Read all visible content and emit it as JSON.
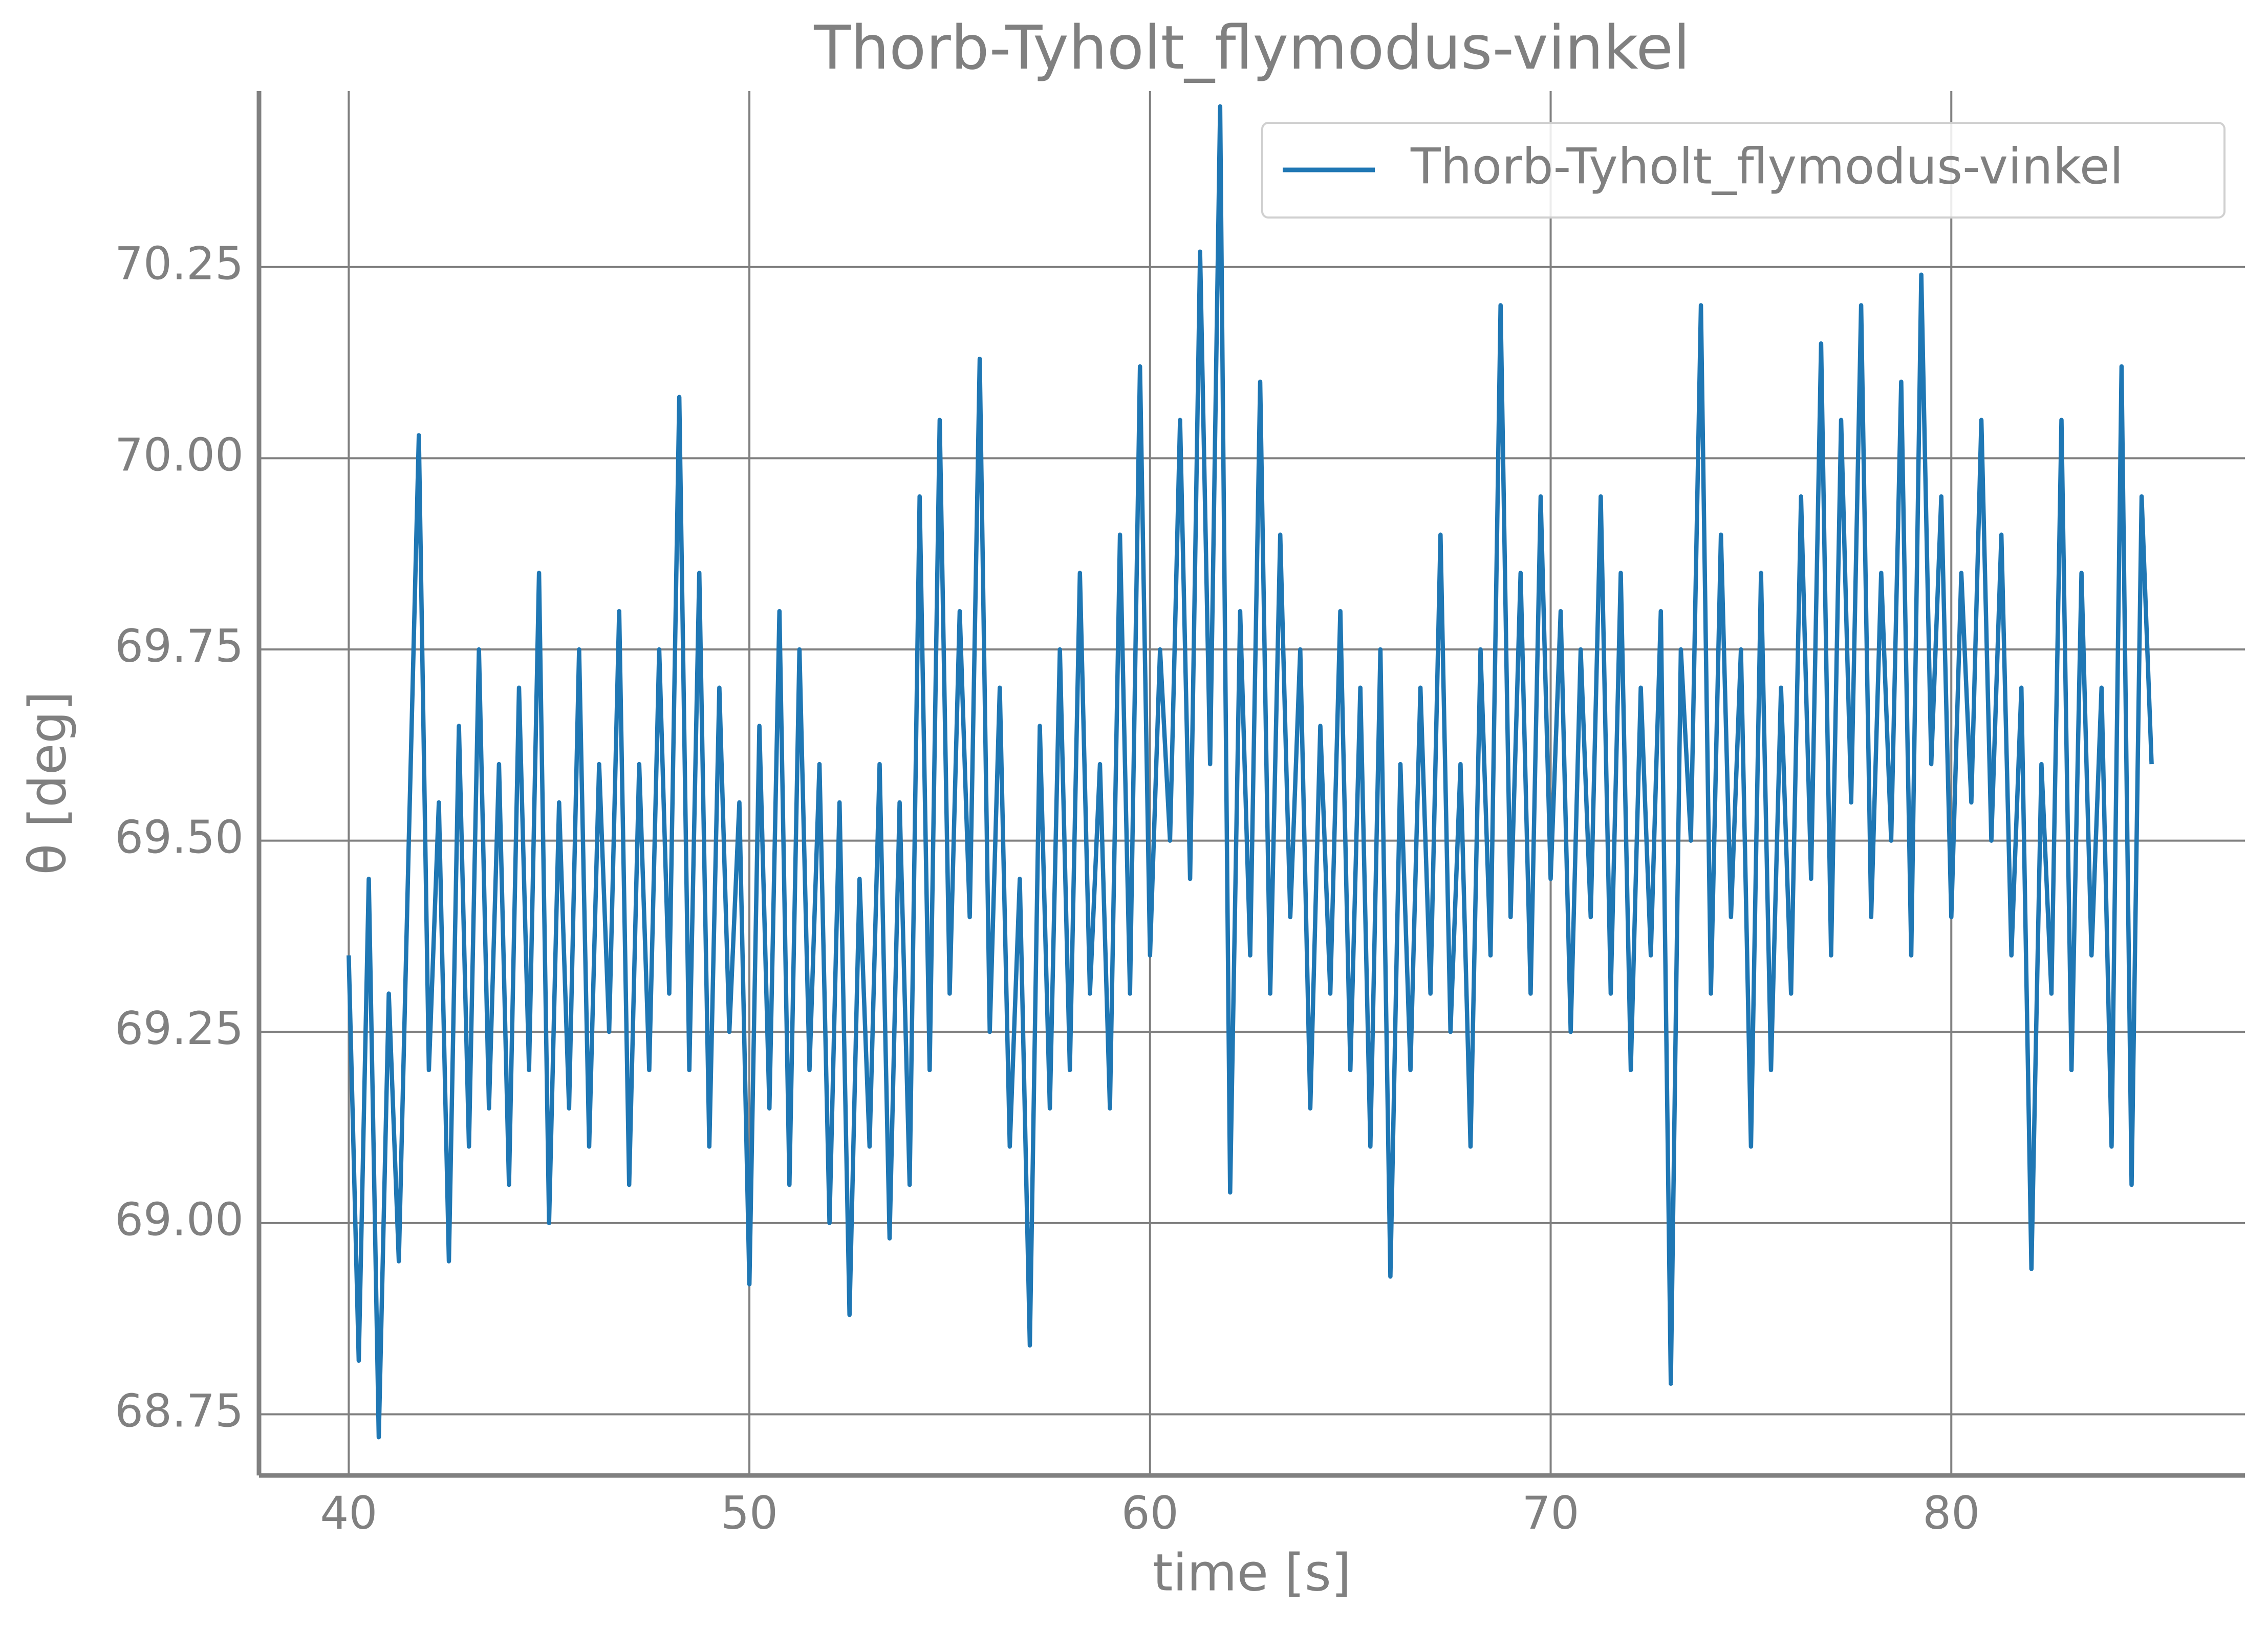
{
  "chart_data": {
    "type": "line",
    "title": "Thorb-Tyholt_flymodus-vinkel",
    "xlabel": "time [s]",
    "ylabel": "θ [deg]",
    "x": [
      40,
      40.25,
      40.5,
      40.75,
      41,
      41.25,
      41.5,
      41.75,
      42,
      42.25,
      42.5,
      42.75,
      43,
      43.25,
      43.5,
      43.75,
      44,
      44.25,
      44.5,
      44.75,
      45,
      45.25,
      45.5,
      45.75,
      46,
      46.25,
      46.5,
      46.75,
      47,
      47.25,
      47.5,
      47.75,
      48,
      48.25,
      48.5,
      48.75,
      49,
      49.25,
      49.5,
      49.75,
      50,
      50.25,
      50.5,
      50.75,
      51,
      51.25,
      51.5,
      51.75,
      52,
      52.25,
      52.5,
      52.75,
      53,
      53.25,
      53.5,
      53.75,
      54,
      54.25,
      54.5,
      54.75,
      55,
      55.25,
      55.5,
      55.75,
      56,
      56.25,
      56.5,
      56.75,
      57,
      57.25,
      57.5,
      57.75,
      58,
      58.25,
      58.5,
      58.75,
      59,
      59.25,
      59.5,
      59.75,
      60,
      60.25,
      60.5,
      60.75,
      61,
      61.25,
      61.5,
      61.75,
      62,
      62.25,
      62.5,
      62.75,
      63,
      63.25,
      63.5,
      63.75,
      64,
      64.25,
      64.5,
      64.75,
      65,
      65.25,
      65.5,
      65.75,
      66,
      66.25,
      66.5,
      66.75,
      67,
      67.25,
      67.5,
      67.75,
      68,
      68.25,
      68.5,
      68.75,
      69,
      69.25,
      69.5,
      69.75,
      70,
      70.25,
      70.5,
      70.75,
      71,
      71.25,
      71.5,
      71.75,
      72,
      72.25,
      72.5,
      72.75,
      73,
      73.25,
      73.5,
      73.75,
      74,
      74.25,
      74.5,
      74.75,
      75,
      75.25,
      75.5,
      75.75,
      76,
      76.25,
      76.5,
      76.75,
      77,
      77.25,
      77.5,
      77.75,
      78,
      78.25,
      78.5,
      78.75,
      79,
      79.25,
      79.5,
      79.75,
      80,
      80.25,
      80.5,
      80.75,
      81,
      81.25,
      81.5,
      81.75,
      82,
      82.25,
      82.5,
      82.75,
      83,
      83.25,
      83.5,
      83.75,
      84,
      84.25,
      84.5,
      84.75,
      85
    ],
    "series": [
      {
        "name": "Thorb-Tyholt_flymodus-vinkel",
        "color": "#1f77b4",
        "values": [
          69.35,
          68.82,
          69.45,
          68.72,
          69.3,
          68.95,
          69.5,
          70.03,
          69.2,
          69.55,
          68.95,
          69.65,
          69.1,
          69.75,
          69.15,
          69.6,
          69.05,
          69.7,
          69.2,
          69.85,
          69.0,
          69.55,
          69.15,
          69.75,
          69.1,
          69.6,
          69.25,
          69.8,
          69.05,
          69.6,
          69.2,
          69.75,
          69.3,
          70.08,
          69.2,
          69.85,
          69.1,
          69.7,
          69.25,
          69.55,
          68.92,
          69.65,
          69.15,
          69.8,
          69.05,
          69.75,
          69.2,
          69.6,
          69.0,
          69.55,
          68.88,
          69.45,
          69.1,
          69.6,
          68.98,
          69.55,
          69.05,
          69.95,
          69.2,
          70.05,
          69.3,
          69.8,
          69.4,
          70.13,
          69.25,
          69.7,
          69.1,
          69.45,
          68.84,
          69.65,
          69.15,
          69.75,
          69.2,
          69.85,
          69.3,
          69.6,
          69.15,
          69.9,
          69.3,
          70.12,
          69.35,
          69.75,
          69.5,
          70.05,
          69.45,
          70.27,
          69.6,
          70.46,
          69.04,
          69.8,
          69.35,
          70.1,
          69.3,
          69.9,
          69.4,
          69.75,
          69.15,
          69.65,
          69.3,
          69.8,
          69.2,
          69.7,
          69.1,
          69.75,
          68.93,
          69.6,
          69.2,
          69.7,
          69.3,
          69.9,
          69.25,
          69.6,
          69.1,
          69.75,
          69.35,
          70.2,
          69.4,
          69.85,
          69.3,
          69.95,
          69.45,
          69.8,
          69.25,
          69.75,
          69.4,
          69.95,
          69.3,
          69.85,
          69.2,
          69.7,
          69.35,
          69.8,
          68.79,
          69.75,
          69.5,
          70.2,
          69.3,
          69.9,
          69.4,
          69.75,
          69.1,
          69.85,
          69.2,
          69.7,
          69.3,
          69.95,
          69.45,
          70.15,
          69.35,
          70.05,
          69.55,
          70.2,
          69.4,
          69.85,
          69.5,
          70.1,
          69.35,
          70.24,
          69.6,
          69.95,
          69.4,
          69.85,
          69.55,
          70.05,
          69.5,
          69.9,
          69.35,
          69.7,
          68.94,
          69.6,
          69.3,
          70.05,
          69.2,
          69.85,
          69.35,
          69.7,
          69.1,
          70.12,
          69.05,
          69.95,
          69.6
        ]
      }
    ],
    "xlim": [
      37.76,
      87.33
    ],
    "ylim": [
      68.67,
      70.48
    ],
    "xticks": [
      40,
      50,
      60,
      70,
      80
    ],
    "yticks": [
      68.75,
      {
        "value": 69,
        "label": "69.00"
      },
      69.25,
      {
        "value": 69.5,
        "label": "69.50"
      },
      69.75,
      {
        "value": 70,
        "label": "70.00"
      },
      70.25
    ],
    "grid": true,
    "legend": "upper right"
  }
}
